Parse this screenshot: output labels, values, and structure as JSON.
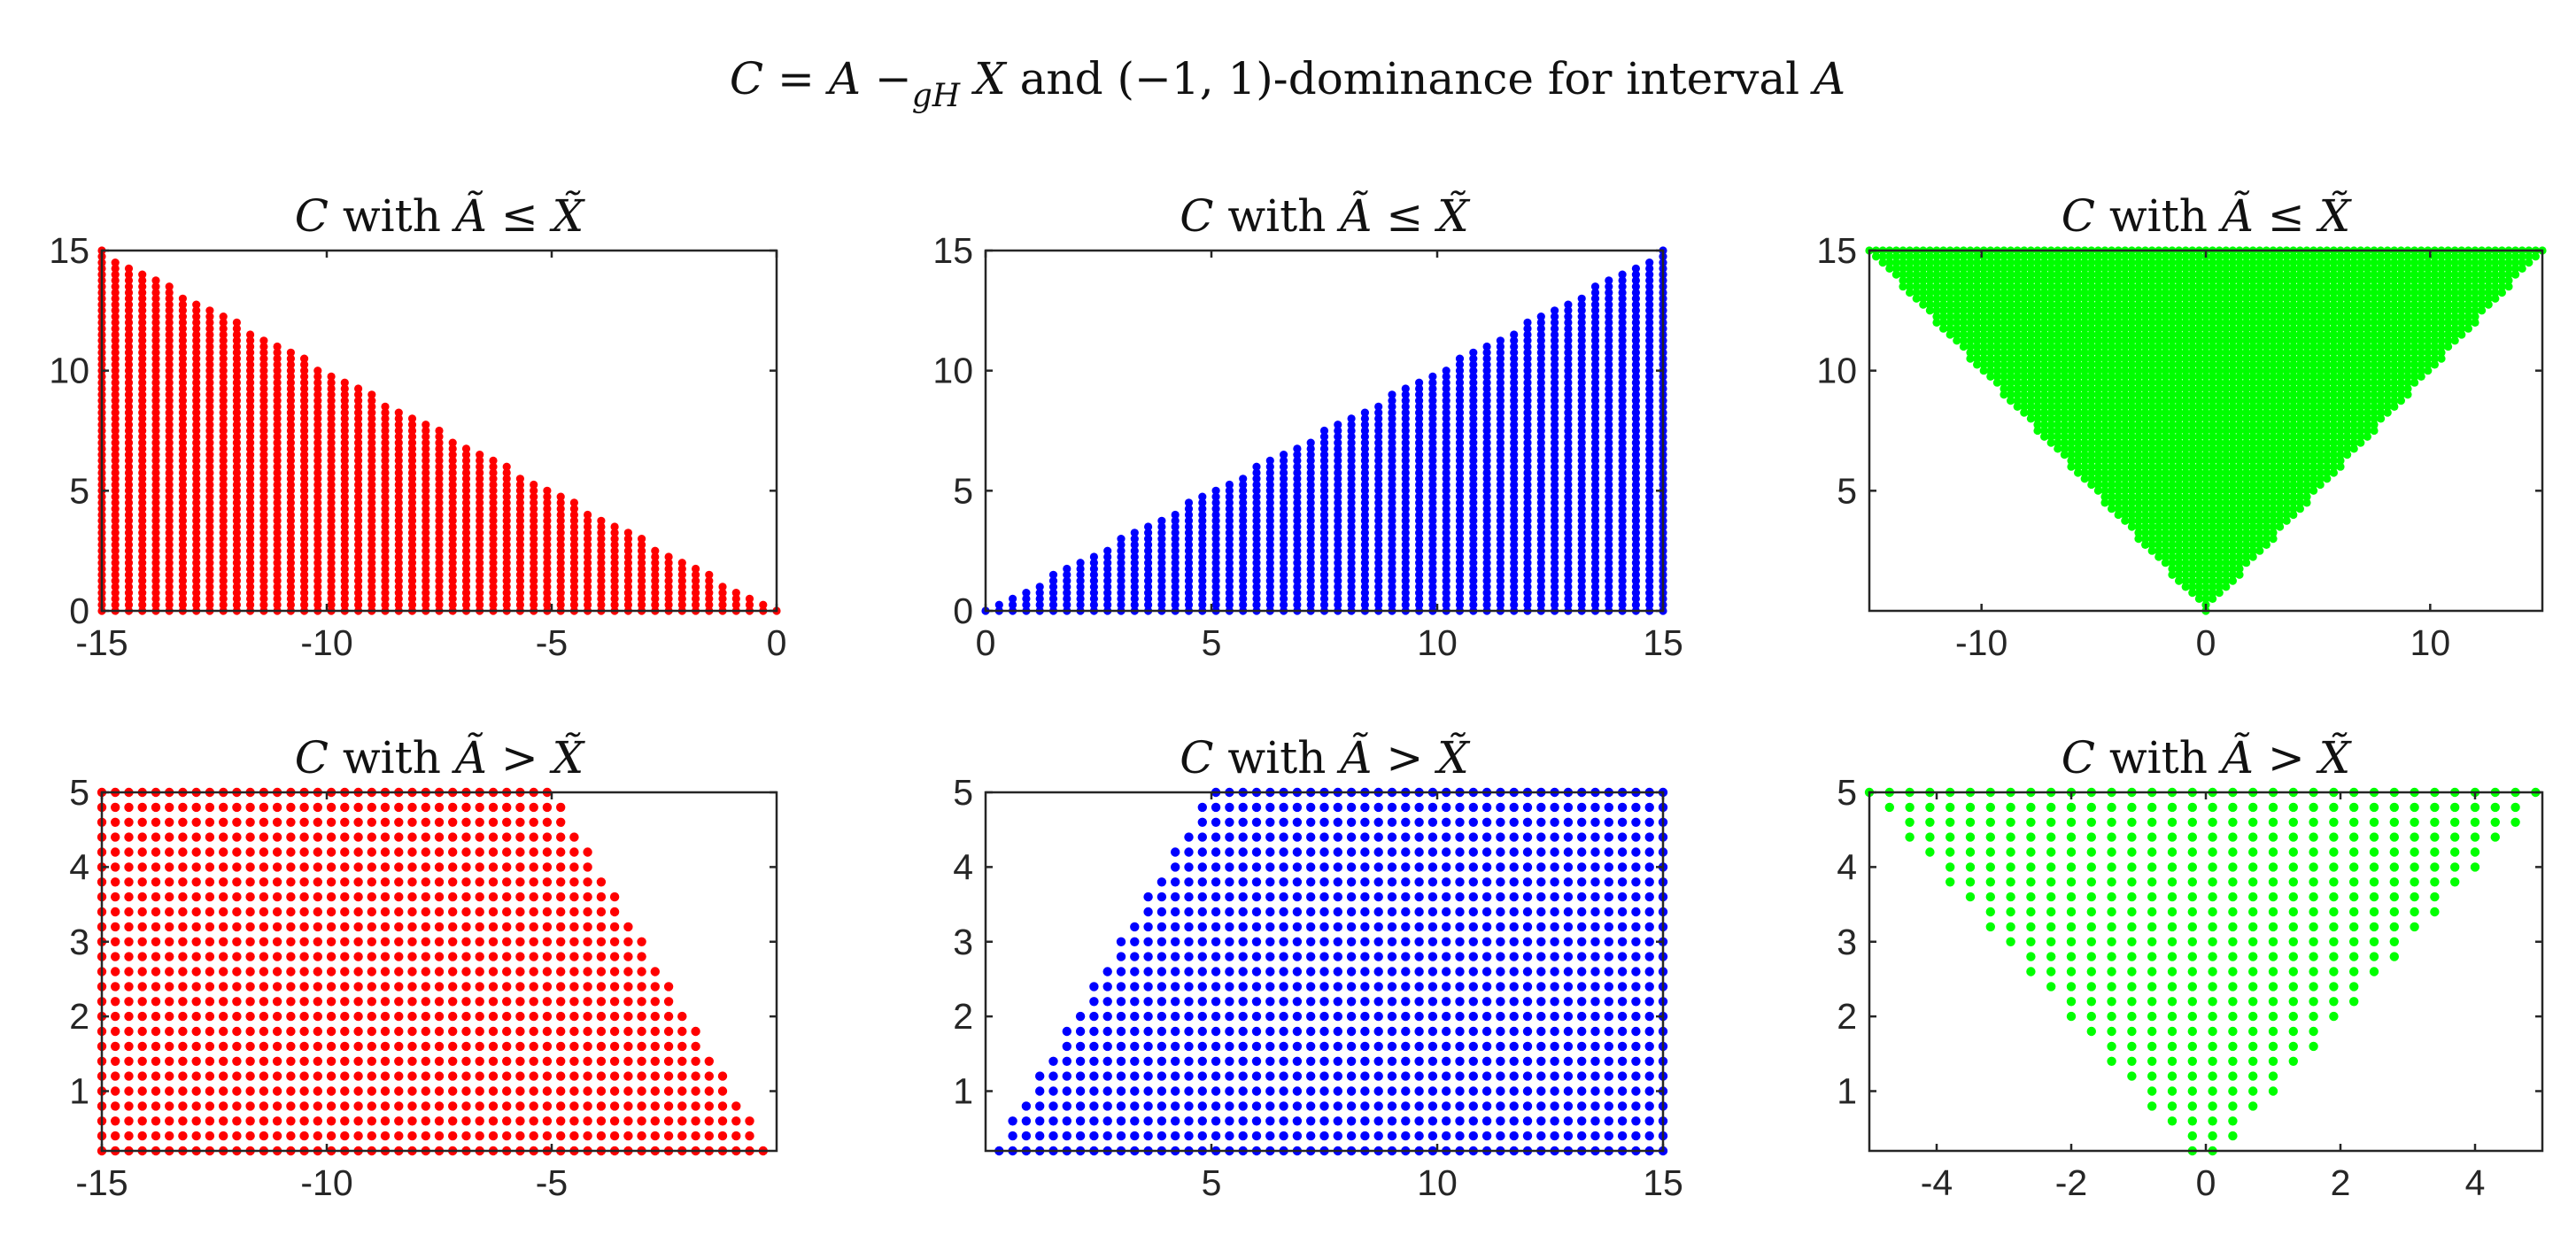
{
  "figure_title": {
    "c": "C",
    "eq": " = ",
    "a": "A",
    "minus": " −",
    "sub": "gH",
    "x": " X",
    "rest": " and (−1, 1)-dominance for interval ",
    "a2": "A"
  },
  "chart_data": [
    {
      "type": "scatter",
      "title": {
        "c": "C",
        "mid": " with ",
        "a": "Ã",
        "rel": " ≤ ",
        "x": "X̃"
      },
      "color": "#ff0000",
      "region": "lower-left triangle: x in [-15,0], 0 <= y <= -x",
      "xlim": [
        -15,
        0
      ],
      "ylim": [
        0,
        15
      ],
      "xticks": [
        -15,
        -10,
        -5,
        0
      ],
      "yticks": [
        0,
        5,
        10,
        15
      ],
      "xticklabels": [
        "-15",
        "-10",
        "-5",
        "0"
      ],
      "yticklabels": [
        "0",
        "5",
        "10",
        "15"
      ],
      "grid_step": {
        "x": 0.3,
        "y": 0.25
      }
    },
    {
      "type": "scatter",
      "title": {
        "c": "C",
        "mid": " with ",
        "a": "Ã",
        "rel": " ≤ ",
        "x": "X̃"
      },
      "color": "#0000ff",
      "region": "lower-right triangle: x in [0,15], 0 <= y <= x",
      "xlim": [
        0,
        15
      ],
      "ylim": [
        0,
        15
      ],
      "xticks": [
        0,
        5,
        10,
        15
      ],
      "yticks": [
        0,
        5,
        10,
        15
      ],
      "xticklabels": [
        "0",
        "5",
        "10",
        "15"
      ],
      "yticklabels": [
        "0",
        "5",
        "10",
        "15"
      ],
      "grid_step": {
        "x": 0.3,
        "y": 0.25
      }
    },
    {
      "type": "scatter",
      "title": {
        "c": "C",
        "mid": " with ",
        "a": "Ã",
        "rel": " ≤ ",
        "x": "X̃"
      },
      "color": "#00ff00",
      "region": "V region: x in [-15,15], |x| <= y <= 15",
      "xlim": [
        -15,
        15
      ],
      "ylim": [
        0,
        15
      ],
      "xticks": [
        -10,
        0,
        10
      ],
      "yticks": [
        5,
        10,
        15
      ],
      "xticklabels": [
        "-10",
        "0",
        "10"
      ],
      "yticklabels": [
        "5",
        "10",
        "15"
      ],
      "grid_step": {
        "x": 0.3,
        "y": 0.25
      }
    },
    {
      "type": "scatter",
      "title": {
        "c": "C",
        "mid": " with ",
        "a": "Ã",
        "rel": " > ",
        "x": "X̃"
      },
      "color": "#ff0000",
      "region": "trapezoid: y in [0.2,5], -15 <= x <= -y",
      "xlim": [
        -15,
        0
      ],
      "ylim": [
        0.2,
        5
      ],
      "xticks": [
        -15,
        -10,
        -5
      ],
      "yticks": [
        1,
        2,
        3,
        4,
        5
      ],
      "xticklabels": [
        "-15",
        "-10",
        "-5"
      ],
      "yticklabels": [
        "1",
        "2",
        "3",
        "4",
        "5"
      ],
      "grid_step": {
        "x": 0.3,
        "y": 0.2
      }
    },
    {
      "type": "scatter",
      "title": {
        "c": "C",
        "mid": " with ",
        "a": "Ã",
        "rel": " > ",
        "x": "X̃"
      },
      "color": "#0000ff",
      "region": "trapezoid: y in [0.2,5], y <= x <= 15",
      "xlim": [
        0,
        15
      ],
      "ylim": [
        0.2,
        5
      ],
      "xticks": [
        5,
        10,
        15
      ],
      "yticks": [
        1,
        2,
        3,
        4,
        5
      ],
      "xticklabels": [
        "5",
        "10",
        "15"
      ],
      "yticklabels": [
        "1",
        "2",
        "3",
        "4",
        "5"
      ],
      "grid_step": {
        "x": 0.3,
        "y": 0.2
      }
    },
    {
      "type": "scatter",
      "title": {
        "c": "C",
        "mid": " with ",
        "a": "Ã",
        "rel": " > ",
        "x": "X̃"
      },
      "color": "#00ff00",
      "region": "V region: x in [-5,5], |x| <= y <= 5",
      "xlim": [
        -5,
        5
      ],
      "ylim": [
        0.2,
        5
      ],
      "xticks": [
        -4,
        -2,
        0,
        2,
        4
      ],
      "yticks": [
        1,
        2,
        3,
        4,
        5
      ],
      "xticklabels": [
        "-4",
        "-2",
        "0",
        "2",
        "4"
      ],
      "yticklabels": [
        "1",
        "2",
        "3",
        "4",
        "5"
      ],
      "grid_step": {
        "x": 0.3,
        "y": 0.2
      }
    }
  ]
}
